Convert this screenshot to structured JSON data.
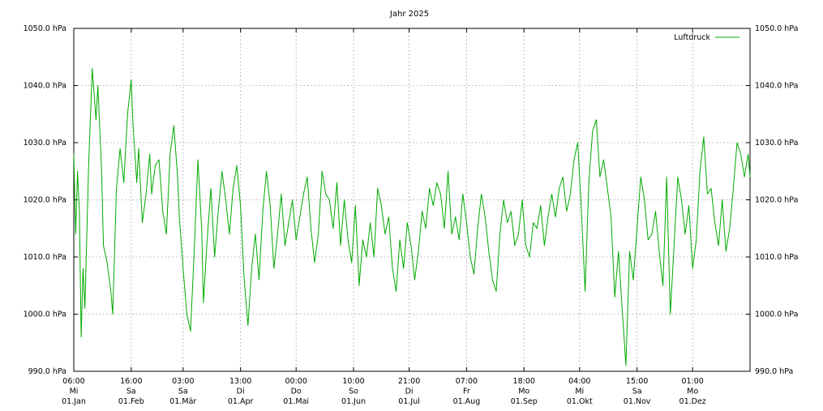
{
  "chart_data": {
    "type": "line",
    "title": "Jahr 2025",
    "xlabel": "",
    "ylabel": "",
    "ylim": [
      990,
      1050
    ],
    "y_ticks": [
      990,
      1000,
      1010,
      1020,
      1030,
      1040,
      1050
    ],
    "y_tick_labels": [
      "990.0 hPa",
      "1000.0 hPa",
      "1010.0 hPa",
      "1020.0 hPa",
      "1030.0 hPa",
      "1040.0 hPa",
      "1050.0 hPa"
    ],
    "x_range_days": [
      0,
      365
    ],
    "grid": true,
    "legend_position": "top-right",
    "x_ticks": [
      {
        "day": 0,
        "time": "06:00",
        "weekday": "Mi",
        "date": "01.Jan"
      },
      {
        "day": 31,
        "time": "16:00",
        "weekday": "Sa",
        "date": "01.Feb"
      },
      {
        "day": 59,
        "time": "03:00",
        "weekday": "Sa",
        "date": "01.Mär"
      },
      {
        "day": 90,
        "time": "13:00",
        "weekday": "Di",
        "date": "01.Apr"
      },
      {
        "day": 120,
        "time": "00:00",
        "weekday": "Do",
        "date": "01.Mai"
      },
      {
        "day": 151,
        "time": "10:00",
        "weekday": "So",
        "date": "01.Jun"
      },
      {
        "day": 181,
        "time": "21:00",
        "weekday": "Di",
        "date": "01.Jul"
      },
      {
        "day": 212,
        "time": "07:00",
        "weekday": "Fr",
        "date": "01.Aug"
      },
      {
        "day": 243,
        "time": "18:00",
        "weekday": "Mo",
        "date": "01.Sep"
      },
      {
        "day": 273,
        "time": "04:00",
        "weekday": "Mi",
        "date": "01.Okt"
      },
      {
        "day": 304,
        "time": "15:00",
        "weekday": "Sa",
        "date": "01.Nov"
      },
      {
        "day": 334,
        "time": "01:00",
        "weekday": "Mo",
        "date": "01.Dez"
      }
    ],
    "series": [
      {
        "name": "Luftdruck",
        "color": "#00aa00",
        "points": [
          [
            0,
            1028
          ],
          [
            1,
            1014
          ],
          [
            2,
            1025
          ],
          [
            3,
            1018
          ],
          [
            4,
            996
          ],
          [
            5,
            1008
          ],
          [
            6,
            1001
          ],
          [
            8,
            1026
          ],
          [
            10,
            1043
          ],
          [
            12,
            1034
          ],
          [
            13,
            1040
          ],
          [
            15,
            1025
          ],
          [
            16,
            1012
          ],
          [
            18,
            1009
          ],
          [
            20,
            1004
          ],
          [
            21,
            1000
          ],
          [
            23,
            1022
          ],
          [
            25,
            1029
          ],
          [
            27,
            1023
          ],
          [
            29,
            1035
          ],
          [
            31,
            1041
          ],
          [
            32,
            1033
          ],
          [
            34,
            1023
          ],
          [
            35,
            1029
          ],
          [
            37,
            1016
          ],
          [
            39,
            1021
          ],
          [
            41,
            1028
          ],
          [
            42,
            1021
          ],
          [
            44,
            1026
          ],
          [
            46,
            1027
          ],
          [
            48,
            1018
          ],
          [
            50,
            1014
          ],
          [
            52,
            1028
          ],
          [
            54,
            1033
          ],
          [
            56,
            1024
          ],
          [
            57,
            1017
          ],
          [
            59,
            1008
          ],
          [
            61,
            1000
          ],
          [
            63,
            997
          ],
          [
            65,
            1011
          ],
          [
            67,
            1027
          ],
          [
            69,
            1015
          ],
          [
            70,
            1002
          ],
          [
            72,
            1013
          ],
          [
            74,
            1022
          ],
          [
            76,
            1010
          ],
          [
            78,
            1018
          ],
          [
            80,
            1025
          ],
          [
            82,
            1020
          ],
          [
            84,
            1014
          ],
          [
            86,
            1022
          ],
          [
            88,
            1026
          ],
          [
            90,
            1019
          ],
          [
            92,
            1006
          ],
          [
            94,
            998
          ],
          [
            96,
            1008
          ],
          [
            98,
            1014
          ],
          [
            100,
            1006
          ],
          [
            102,
            1018
          ],
          [
            104,
            1025
          ],
          [
            106,
            1019
          ],
          [
            108,
            1008
          ],
          [
            110,
            1014
          ],
          [
            112,
            1021
          ],
          [
            114,
            1012
          ],
          [
            116,
            1016
          ],
          [
            118,
            1020
          ],
          [
            120,
            1013
          ],
          [
            122,
            1017
          ],
          [
            124,
            1021
          ],
          [
            126,
            1024
          ],
          [
            128,
            1015
          ],
          [
            130,
            1009
          ],
          [
            132,
            1014
          ],
          [
            134,
            1025
          ],
          [
            136,
            1021
          ],
          [
            138,
            1020
          ],
          [
            140,
            1015
          ],
          [
            142,
            1023
          ],
          [
            144,
            1012
          ],
          [
            146,
            1020
          ],
          [
            148,
            1013
          ],
          [
            150,
            1009
          ],
          [
            152,
            1019
          ],
          [
            154,
            1005
          ],
          [
            156,
            1013
          ],
          [
            158,
            1010
          ],
          [
            160,
            1016
          ],
          [
            162,
            1010
          ],
          [
            164,
            1022
          ],
          [
            166,
            1019
          ],
          [
            168,
            1014
          ],
          [
            170,
            1017
          ],
          [
            172,
            1008
          ],
          [
            174,
            1004
          ],
          [
            176,
            1013
          ],
          [
            178,
            1008
          ],
          [
            180,
            1016
          ],
          [
            182,
            1012
          ],
          [
            184,
            1006
          ],
          [
            186,
            1011
          ],
          [
            188,
            1018
          ],
          [
            190,
            1015
          ],
          [
            192,
            1022
          ],
          [
            194,
            1019
          ],
          [
            196,
            1023
          ],
          [
            198,
            1021
          ],
          [
            200,
            1015
          ],
          [
            202,
            1025
          ],
          [
            204,
            1014
          ],
          [
            206,
            1017
          ],
          [
            208,
            1013
          ],
          [
            210,
            1021
          ],
          [
            212,
            1016
          ],
          [
            214,
            1010
          ],
          [
            216,
            1007
          ],
          [
            218,
            1015
          ],
          [
            220,
            1021
          ],
          [
            222,
            1017
          ],
          [
            224,
            1011
          ],
          [
            226,
            1006
          ],
          [
            228,
            1004
          ],
          [
            230,
            1014
          ],
          [
            232,
            1020
          ],
          [
            234,
            1016
          ],
          [
            236,
            1018
          ],
          [
            238,
            1012
          ],
          [
            240,
            1014
          ],
          [
            242,
            1020
          ],
          [
            244,
            1012
          ],
          [
            246,
            1010
          ],
          [
            248,
            1016
          ],
          [
            250,
            1015
          ],
          [
            252,
            1019
          ],
          [
            254,
            1012
          ],
          [
            256,
            1017
          ],
          [
            258,
            1021
          ],
          [
            260,
            1017
          ],
          [
            262,
            1022
          ],
          [
            264,
            1024
          ],
          [
            266,
            1018
          ],
          [
            268,
            1021
          ],
          [
            270,
            1027
          ],
          [
            272,
            1030
          ],
          [
            274,
            1018
          ],
          [
            276,
            1004
          ],
          [
            278,
            1023
          ],
          [
            280,
            1032
          ],
          [
            282,
            1034
          ],
          [
            284,
            1024
          ],
          [
            286,
            1027
          ],
          [
            288,
            1022
          ],
          [
            290,
            1017
          ],
          [
            292,
            1003
          ],
          [
            294,
            1011
          ],
          [
            296,
            1001
          ],
          [
            298,
            991
          ],
          [
            300,
            1011
          ],
          [
            302,
            1006
          ],
          [
            304,
            1015
          ],
          [
            306,
            1024
          ],
          [
            308,
            1020
          ],
          [
            310,
            1013
          ],
          [
            312,
            1014
          ],
          [
            314,
            1018
          ],
          [
            316,
            1011
          ],
          [
            318,
            1005
          ],
          [
            320,
            1024
          ],
          [
            322,
            1000
          ],
          [
            324,
            1012
          ],
          [
            326,
            1024
          ],
          [
            328,
            1020
          ],
          [
            330,
            1014
          ],
          [
            332,
            1019
          ],
          [
            334,
            1008
          ],
          [
            336,
            1013
          ],
          [
            338,
            1025
          ],
          [
            340,
            1031
          ],
          [
            342,
            1021
          ],
          [
            344,
            1022
          ],
          [
            346,
            1016
          ],
          [
            348,
            1012
          ],
          [
            350,
            1020
          ],
          [
            352,
            1011
          ],
          [
            354,
            1015
          ],
          [
            356,
            1022
          ],
          [
            358,
            1030
          ],
          [
            360,
            1028
          ],
          [
            362,
            1024
          ],
          [
            364,
            1028
          ],
          [
            365,
            1024
          ]
        ]
      }
    ]
  }
}
